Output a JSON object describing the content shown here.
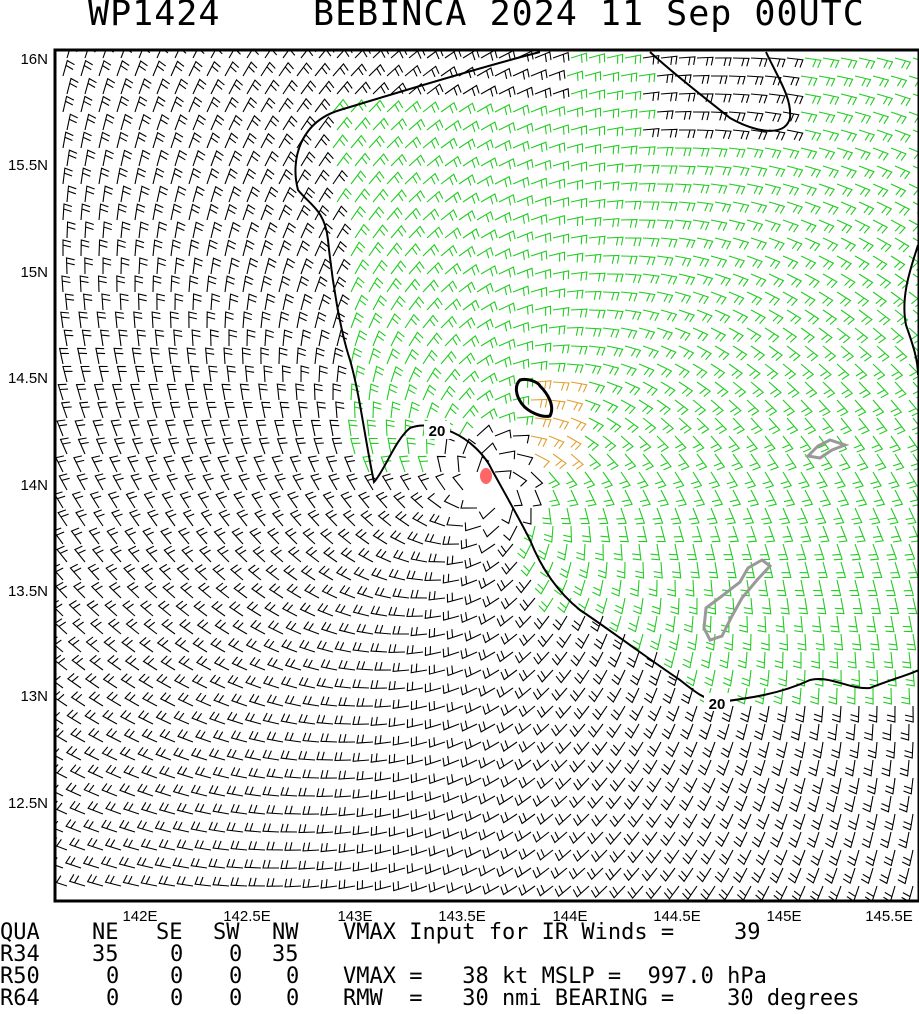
{
  "title": {
    "storm_id": "WP1424",
    "storm_info": "BEBINCA 2024 11 Sep 00UTC"
  },
  "map": {
    "lat_ticks": [
      "16N",
      "15.5N",
      "15N",
      "14.5N",
      "14N",
      "13.5N",
      "13N",
      "12.5N"
    ],
    "lon_ticks": [
      "142E",
      "142.5E",
      "143E",
      "143.5E",
      "144E",
      "144.5E",
      "145E",
      "145.5E"
    ],
    "lat_range": [
      12.05,
      16.0
    ],
    "lon_range": [
      141.62,
      145.62
    ],
    "contour_label": "20",
    "center": {
      "lat": 13.98,
      "lon": 143.63
    },
    "colors": {
      "below_34kt": "#000000",
      "r34_barbs": "#22cc22",
      "r50_barbs": "#e0a030",
      "contour": "#000000",
      "land": "#999999",
      "center_marker": "#ff6666"
    }
  },
  "table": {
    "header": [
      "QUA",
      "NE",
      "SE",
      "SW",
      "NW"
    ],
    "rows": [
      {
        "label": "R34",
        "values": [
          "35",
          "0",
          "0",
          "35"
        ]
      },
      {
        "label": "R50",
        "values": [
          "0",
          "0",
          "0",
          "0"
        ]
      },
      {
        "label": "R64",
        "values": [
          "0",
          "0",
          "0",
          "0"
        ]
      }
    ],
    "vmax_input_label": "VMAX Input for IR Winds =",
    "vmax_input_value": "39",
    "vmax_line": "VMAX =   38 kt MSLP =  997.0 hPa",
    "rmw_line": "RMW  =   30 nmi BEARING =    30 degrees"
  }
}
